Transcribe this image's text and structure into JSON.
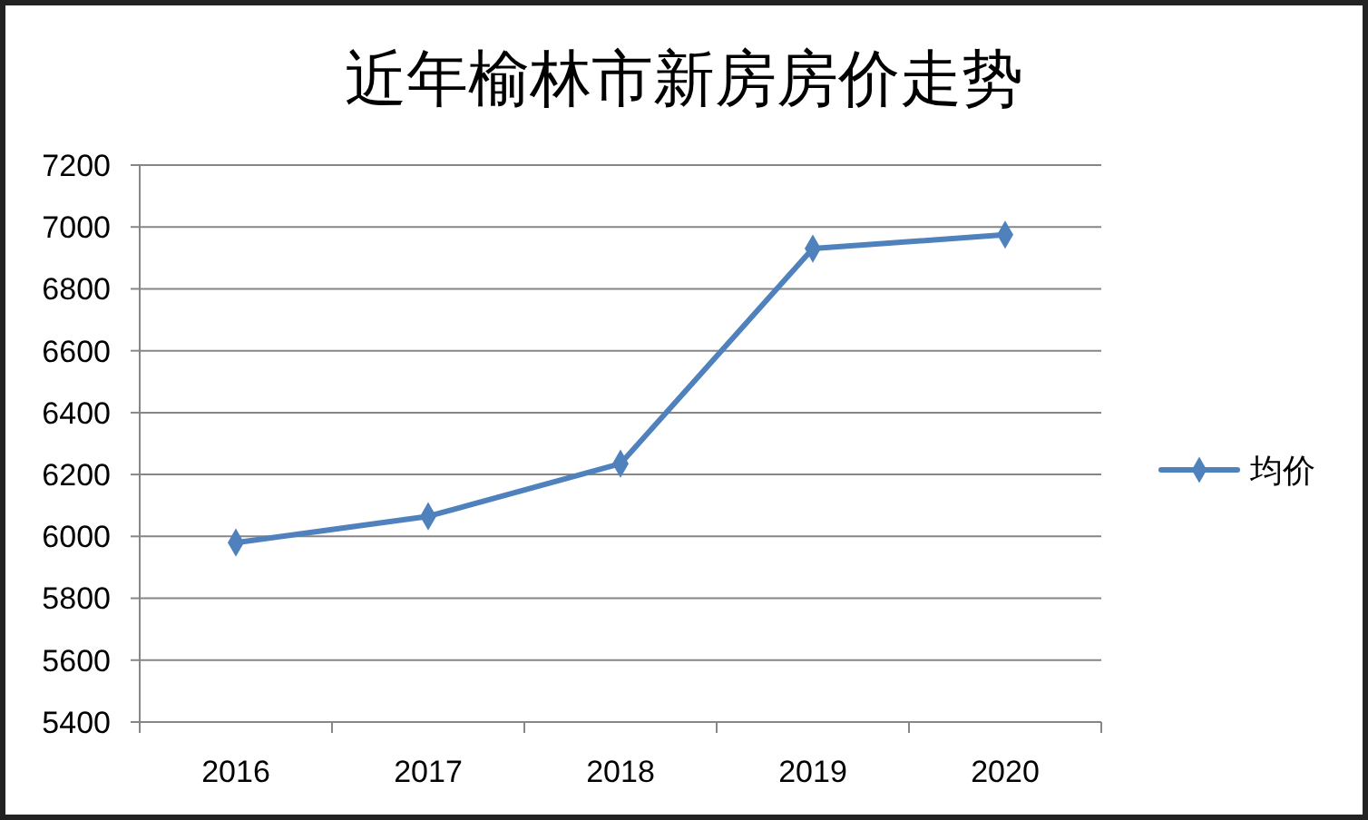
{
  "chart_data": {
    "type": "line",
    "title": "近年榆林市新房房价走势",
    "categories": [
      "2016",
      "2017",
      "2018",
      "2019",
      "2020"
    ],
    "series": [
      {
        "name": "均价",
        "color": "#4f81bd",
        "values": [
          5980,
          6065,
          6235,
          6930,
          6975
        ]
      }
    ],
    "ylim": [
      5400,
      7200
    ],
    "yticks": [
      5400,
      5600,
      5800,
      6000,
      6200,
      6400,
      6600,
      6800,
      7000,
      7200
    ],
    "grid": "y",
    "legend": "right",
    "marker": "diamond",
    "line_style": "solid"
  }
}
